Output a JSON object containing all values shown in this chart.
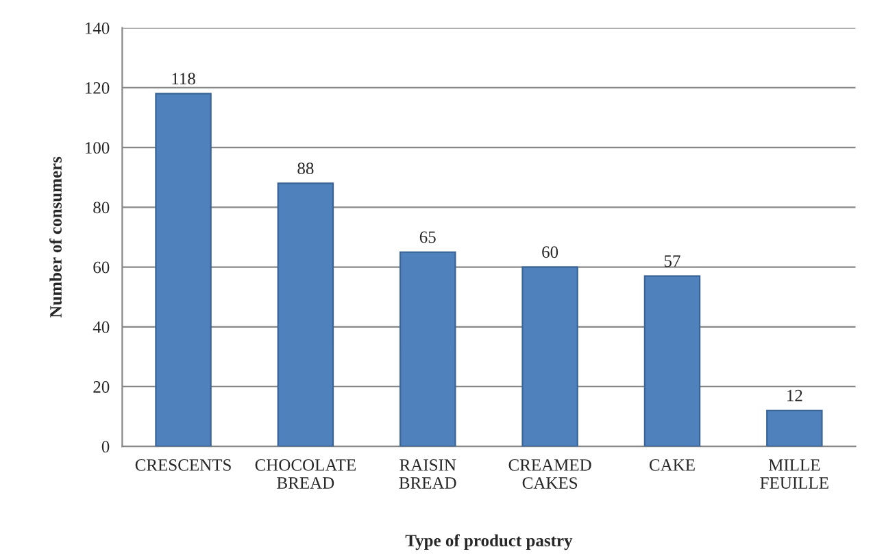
{
  "chart_data": {
    "type": "bar",
    "xlabel": "Type of product pastry",
    "ylabel": "Number of consumers",
    "categories": [
      "CRESCENTS",
      "CHOCOLATE\nBREAD",
      "RAISIN\nBREAD",
      "CREAMED\nCAKES",
      "CAKE",
      "MILLE\nFEUILLE"
    ],
    "values": [
      118,
      88,
      65,
      60,
      57,
      12
    ],
    "color": "#4f81bd",
    "ylim": [
      0,
      140
    ],
    "yticks": [
      0,
      20,
      40,
      60,
      80,
      100,
      120,
      140
    ],
    "grid": "y",
    "data_labels": true
  }
}
